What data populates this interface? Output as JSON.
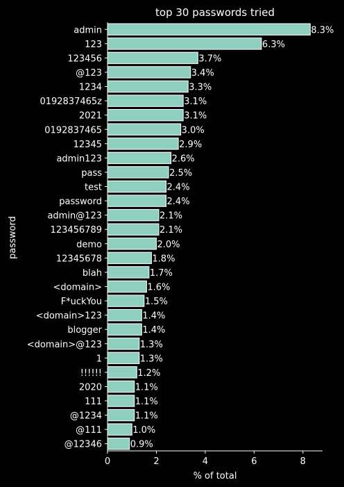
{
  "chart_data": {
    "type": "bar",
    "orientation": "horizontal",
    "title": "top 30 passwords tried",
    "xlabel": "% of total",
    "ylabel": "password",
    "xlim": [
      0,
      8.8
    ],
    "xticks": [
      0,
      2,
      4,
      6,
      8
    ],
    "grid": false,
    "bar_color": "#8fcfc0",
    "bar_edge_color": "#ffffff",
    "background": "#000000",
    "categories": [
      "admin",
      "123",
      "123456",
      "@123",
      "1234",
      "0192837465z",
      "2021",
      "0192837465",
      "12345",
      "admin123",
      "pass",
      "test",
      "password",
      "admin@123",
      "123456789",
      "demo",
      "12345678",
      "blah",
      "<domain>",
      "F*uckYou",
      "<domain>123",
      "blogger",
      "<domain>@123",
      "1",
      "!!!!!!",
      "2020",
      "111",
      "@1234",
      "@111",
      "@12346"
    ],
    "values": [
      8.3,
      6.3,
      3.7,
      3.4,
      3.3,
      3.1,
      3.1,
      3.0,
      2.9,
      2.6,
      2.5,
      2.4,
      2.4,
      2.1,
      2.1,
      2.0,
      1.8,
      1.7,
      1.6,
      1.5,
      1.4,
      1.4,
      1.3,
      1.3,
      1.2,
      1.1,
      1.1,
      1.1,
      1.0,
      0.9
    ],
    "labels": [
      "8.3%",
      "6.3%",
      "3.7%",
      "3.4%",
      "3.3%",
      "3.1%",
      "3.1%",
      "3.0%",
      "2.9%",
      "2.6%",
      "2.5%",
      "2.4%",
      "2.4%",
      "2.1%",
      "2.1%",
      "2.0%",
      "1.8%",
      "1.7%",
      "1.6%",
      "1.5%",
      "1.4%",
      "1.4%",
      "1.3%",
      "1.3%",
      "1.2%",
      "1.1%",
      "1.1%",
      "1.1%",
      "1.0%",
      "0.9%"
    ]
  }
}
